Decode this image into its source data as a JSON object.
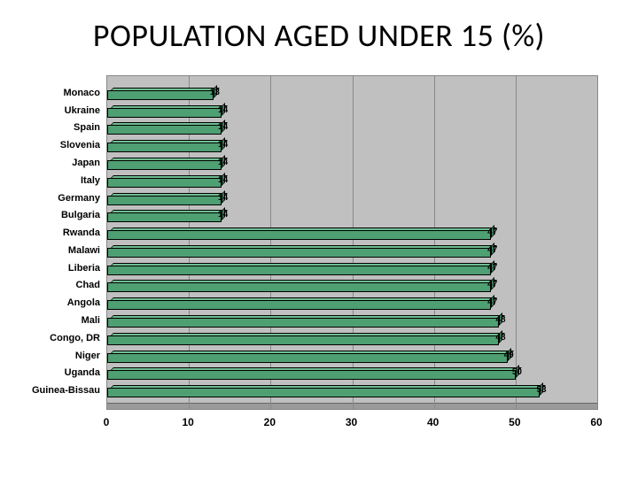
{
  "title": "POPULATION AGED UNDER 15 (%)",
  "chart": {
    "type": "bar-horizontal-3d",
    "background_color": "#c0c0c0",
    "grid_color": "#888888",
    "bar_fill": "#4e9f72",
    "bar_top": "#6fbf92",
    "bar_side": "#3a7a56",
    "bar_border": "#000000",
    "xlim": [
      0,
      60
    ],
    "xtick_step": 10,
    "xticks": [
      0,
      10,
      20,
      30,
      40,
      50,
      60
    ],
    "label_fontsize": 11,
    "title_fontsize": 36,
    "categories": [
      "Monaco",
      "Ukraine",
      "Spain",
      "Slovenia",
      "Japan",
      "Italy",
      "Germany",
      "Bulgaria",
      "Rwanda",
      "Malawi",
      "Liberia",
      "Chad",
      "Angola",
      "Mali",
      "Congo, DR",
      "Niger",
      "Uganda",
      "Guinea-Bissau"
    ],
    "values": [
      13,
      14,
      14,
      14,
      14,
      14,
      14,
      14,
      47,
      47,
      47,
      47,
      47,
      48,
      48,
      49,
      50,
      53
    ]
  }
}
